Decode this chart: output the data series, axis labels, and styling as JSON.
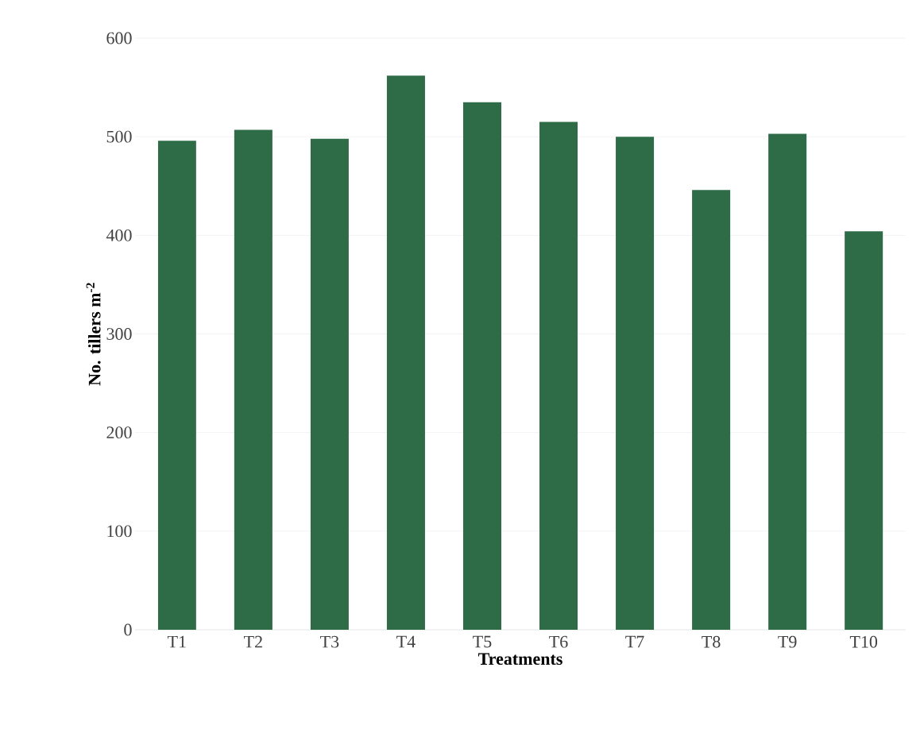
{
  "chart_data": {
    "type": "bar",
    "xlabel": "Treatments",
    "ylabel": "No. tillers m$^{-2}$",
    "categories": [
      "T1",
      "T2",
      "T3",
      "T4",
      "T5",
      "T6",
      "T7",
      "T8",
      "T9",
      "T10"
    ],
    "values": [
      496,
      507,
      498,
      562,
      535,
      515,
      500,
      446,
      503,
      404
    ],
    "color": "#2e6b47",
    "ylim": [
      0,
      600
    ],
    "yticks": [
      0,
      100,
      200,
      300,
      400,
      500,
      600
    ],
    "grid": "y"
  }
}
